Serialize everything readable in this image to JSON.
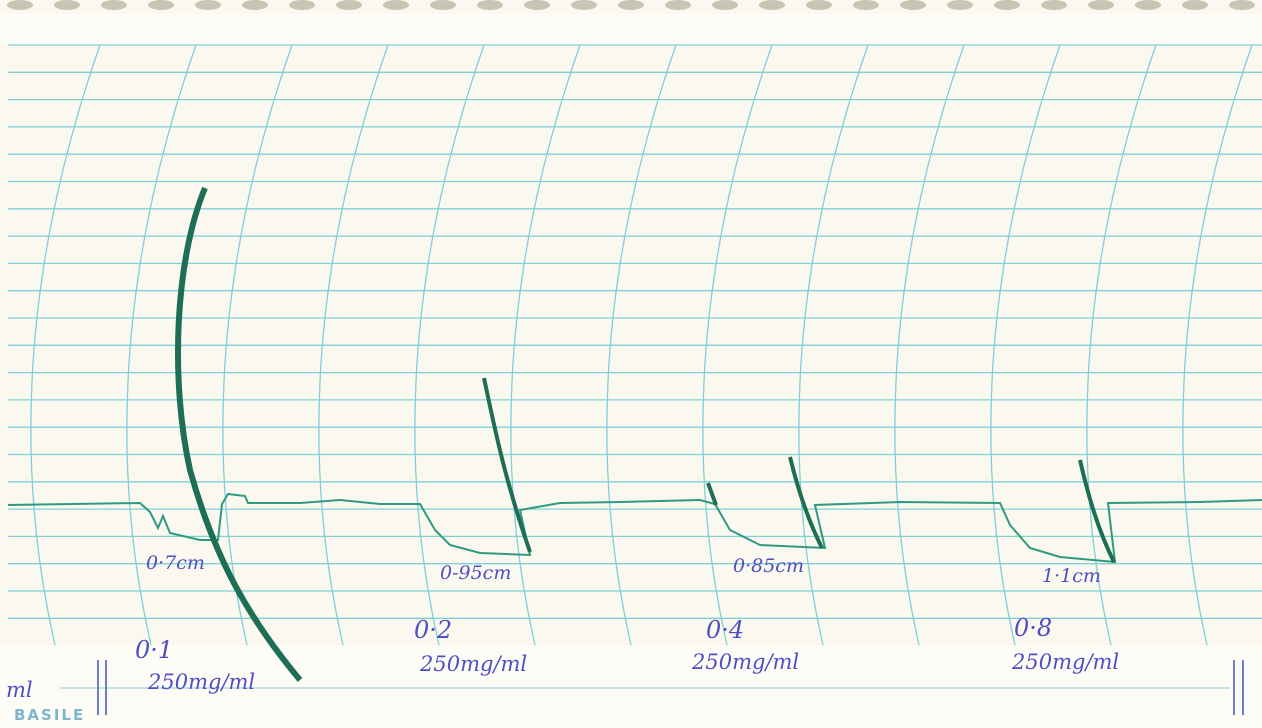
{
  "recordings": [
    {
      "response": "0·7cm",
      "dose": "0·1",
      "concentration": "250mg/ml"
    },
    {
      "response": "0-95cm",
      "dose": "0·2",
      "concentration": "250mg/ml"
    },
    {
      "response": "0·85cm",
      "dose": "0·4",
      "concentration": "250mg/ml"
    },
    {
      "response": "1·1cm",
      "dose": "0·8",
      "concentration": "250mg/ml"
    }
  ],
  "margin_label": "ml",
  "brand": "BASILE"
}
